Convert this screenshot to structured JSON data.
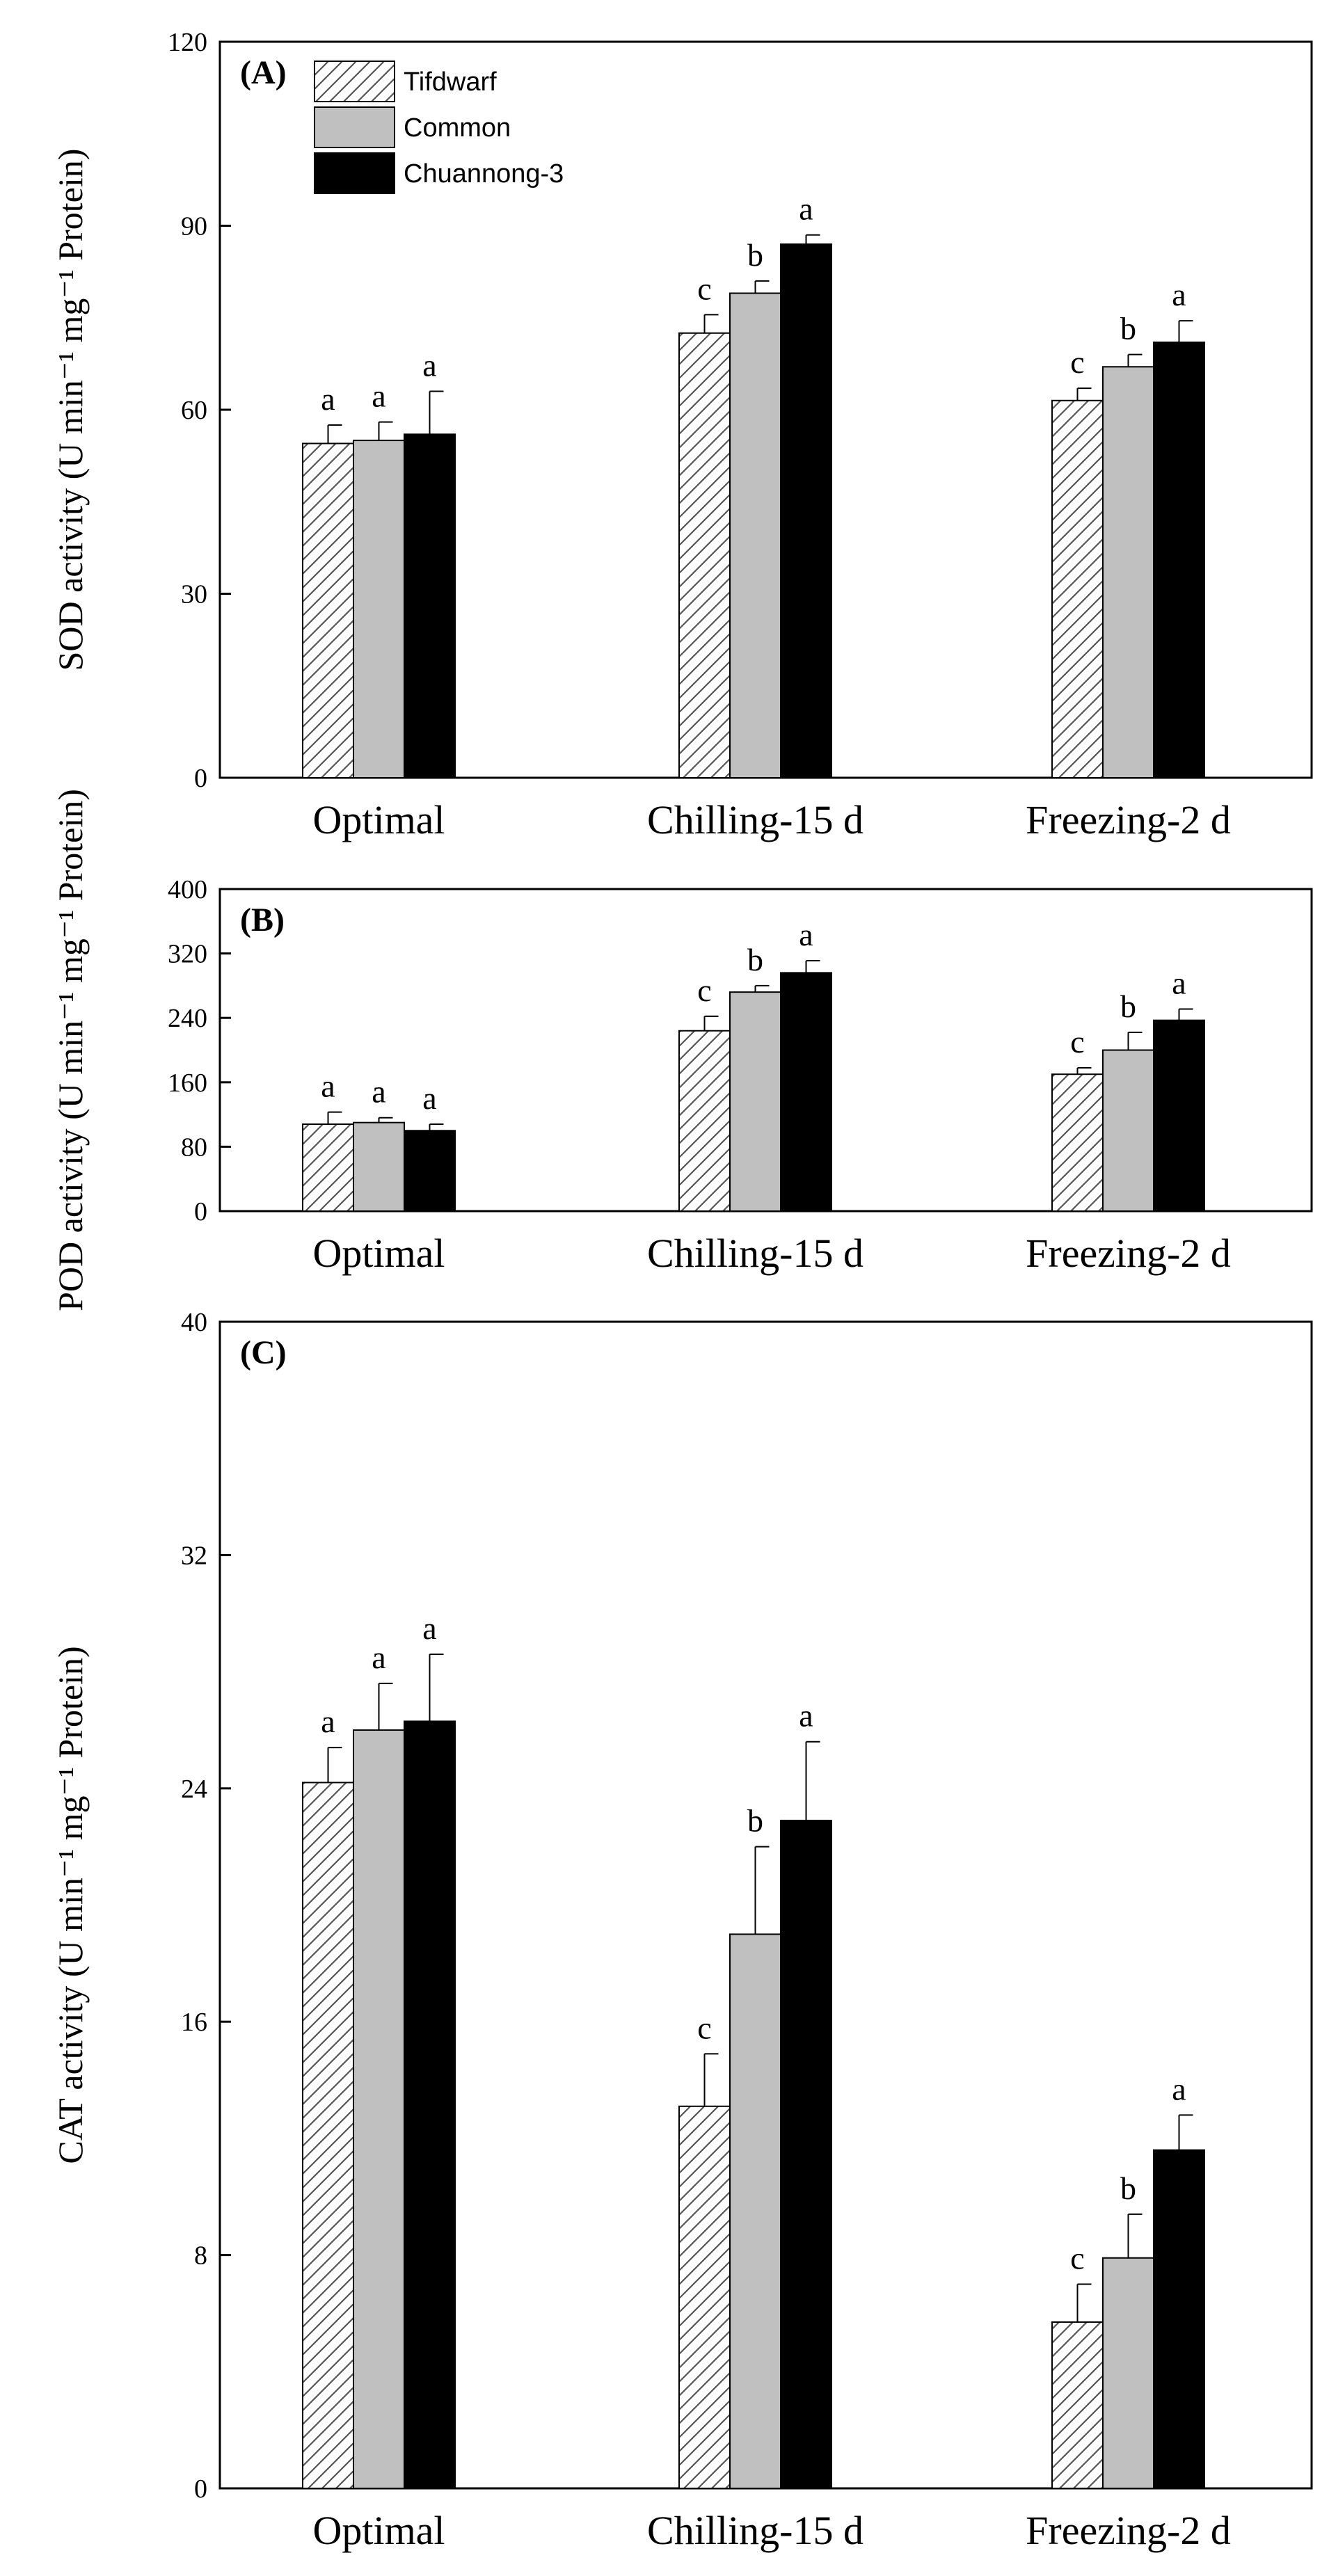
{
  "chart_data": [
    {
      "type": "bar",
      "panel_label": "(A)",
      "ylabel": "SOD activity (U min⁻¹ mg⁻¹ Protein)",
      "ylim": [
        0,
        120
      ],
      "yticks": [
        0,
        30,
        60,
        90,
        120
      ],
      "categories": [
        "Optimal",
        "Chilling-15 d",
        "Freezing-2 d"
      ],
      "series": [
        {
          "name": "Tifdwarf",
          "values": [
            54.5,
            72.5,
            61.5
          ],
          "errors": [
            3.0,
            3.0,
            2.0
          ],
          "letters": [
            "a",
            "c",
            "c"
          ]
        },
        {
          "name": "Common",
          "values": [
            55.0,
            79.0,
            67.0
          ],
          "errors": [
            3.0,
            2.0,
            2.0
          ],
          "letters": [
            "a",
            "b",
            "b"
          ]
        },
        {
          "name": "Chuannong-3",
          "values": [
            56.0,
            87.0,
            71.0
          ],
          "errors": [
            7.0,
            1.5,
            3.5
          ],
          "letters": [
            "a",
            "a",
            "a"
          ]
        }
      ],
      "legend": "top-left"
    },
    {
      "type": "bar",
      "panel_label": "(B)",
      "ylabel": "POD activity (U min⁻¹ mg⁻¹ Protein)",
      "ylim": [
        0,
        400
      ],
      "yticks": [
        0,
        80,
        160,
        240,
        320,
        400
      ],
      "categories": [
        "Optimal",
        "Chilling-15 d",
        "Freezing-2 d"
      ],
      "series": [
        {
          "name": "Tifdwarf",
          "values": [
            108,
            224,
            170
          ],
          "errors": [
            15,
            18,
            8
          ],
          "letters": [
            "a",
            "c",
            "c"
          ]
        },
        {
          "name": "Common",
          "values": [
            110,
            272,
            200
          ],
          "errors": [
            6,
            8,
            22
          ],
          "letters": [
            "a",
            "b",
            "b"
          ]
        },
        {
          "name": "Chuannong-3",
          "values": [
            100,
            296,
            237
          ],
          "errors": [
            8,
            15,
            14
          ],
          "letters": [
            "a",
            "a",
            "a"
          ]
        }
      ]
    },
    {
      "type": "bar",
      "panel_label": "(C)",
      "ylabel": "CAT activity (U min⁻¹ mg⁻¹ Protein)",
      "ylim": [
        0,
        40
      ],
      "yticks": [
        0,
        8,
        16,
        24,
        32,
        40
      ],
      "categories": [
        "Optimal",
        "Chilling-15 d",
        "Freezing-2 d"
      ],
      "series": [
        {
          "name": "Tifdwarf",
          "values": [
            24.2,
            13.1,
            5.7
          ],
          "errors": [
            1.2,
            1.8,
            1.3
          ],
          "letters": [
            "a",
            "c",
            "c"
          ]
        },
        {
          "name": "Common",
          "values": [
            26.0,
            19.0,
            7.9
          ],
          "errors": [
            1.6,
            3.0,
            1.5
          ],
          "letters": [
            "a",
            "b",
            "b"
          ]
        },
        {
          "name": "Chuannong-3",
          "values": [
            26.3,
            22.9,
            11.6
          ],
          "errors": [
            2.3,
            2.7,
            1.2
          ],
          "letters": [
            "a",
            "a",
            "a"
          ]
        }
      ]
    }
  ],
  "series_fills": [
    "hatch",
    "#c0c0c0",
    "#000000"
  ],
  "colors": {
    "axis": "#000000",
    "hatch_line": "#555555",
    "bar_border": "#000000"
  }
}
